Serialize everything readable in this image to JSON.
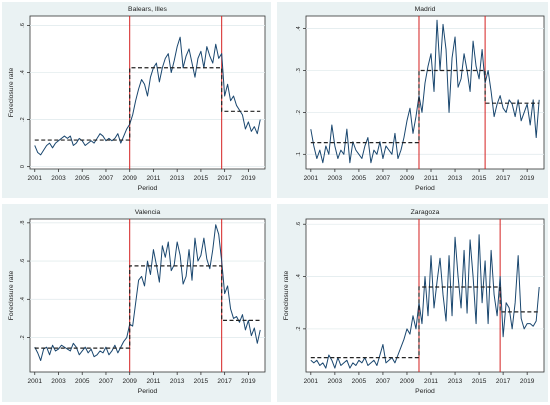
{
  "chart_data": [
    {
      "type": "line",
      "title": "Balears, Illes",
      "xlabel": "Period",
      "ylabel": "Foreclosure rate",
      "xlim": [
        2000.6,
        2020.4
      ],
      "ylim": [
        -0.01,
        0.64
      ],
      "xticks": [
        2001,
        2003,
        2005,
        2007,
        2009,
        2011,
        2013,
        2015,
        2017,
        2019
      ],
      "yticks": [
        0,
        0.2,
        0.4,
        0.6
      ],
      "ytick_labels": [
        "0",
        ".2",
        ".4",
        ".6"
      ],
      "grid": true,
      "breaks": [
        2009.0,
        2016.75
      ],
      "regime_means": [
        {
          "x_start": 2001.0,
          "x_end": 2009.0,
          "y": 0.113
        },
        {
          "x_start": 2009.0,
          "x_end": 2016.75,
          "y": 0.42
        },
        {
          "x_start": 2016.75,
          "x_end": 2020.0,
          "y": 0.235
        }
      ],
      "series": [
        {
          "x": [
            2001.0,
            2001.25,
            2001.5,
            2001.75,
            2002.0,
            2002.25,
            2002.5,
            2002.75,
            2003.0,
            2003.25,
            2003.5,
            2003.75,
            2004.0,
            2004.25,
            2004.5,
            2004.75,
            2005.0,
            2005.25,
            2005.5,
            2005.75,
            2006.0,
            2006.25,
            2006.5,
            2006.75,
            2007.0,
            2007.25,
            2007.5,
            2007.75,
            2008.0,
            2008.25,
            2008.5,
            2008.75,
            2009.0,
            2009.25,
            2009.5,
            2009.75,
            2010.0,
            2010.25,
            2010.5,
            2010.75,
            2011.0,
            2011.25,
            2011.5,
            2011.75,
            2012.0,
            2012.25,
            2012.5,
            2012.75,
            2013.0,
            2013.25,
            2013.5,
            2013.75,
            2014.0,
            2014.25,
            2014.5,
            2014.75,
            2015.0,
            2015.25,
            2015.5,
            2015.75,
            2016.0,
            2016.25,
            2016.5,
            2016.75,
            2017.0,
            2017.25,
            2017.5,
            2017.75,
            2018.0,
            2018.25,
            2018.5,
            2018.75,
            2019.0,
            2019.25,
            2019.5,
            2019.75,
            2020.0
          ],
          "values": [
            0.09,
            0.06,
            0.05,
            0.07,
            0.09,
            0.1,
            0.08,
            0.1,
            0.11,
            0.12,
            0.13,
            0.12,
            0.13,
            0.09,
            0.1,
            0.12,
            0.11,
            0.09,
            0.1,
            0.11,
            0.1,
            0.12,
            0.14,
            0.13,
            0.11,
            0.12,
            0.11,
            0.12,
            0.14,
            0.1,
            0.13,
            0.16,
            0.18,
            0.22,
            0.28,
            0.33,
            0.37,
            0.35,
            0.3,
            0.38,
            0.42,
            0.44,
            0.36,
            0.42,
            0.46,
            0.48,
            0.4,
            0.45,
            0.51,
            0.55,
            0.42,
            0.47,
            0.5,
            0.44,
            0.38,
            0.46,
            0.49,
            0.42,
            0.51,
            0.47,
            0.44,
            0.52,
            0.46,
            0.48,
            0.3,
            0.35,
            0.28,
            0.3,
            0.26,
            0.24,
            0.22,
            0.16,
            0.19,
            0.15,
            0.17,
            0.14,
            0.2
          ]
        }
      ]
    },
    {
      "type": "line",
      "title": "Madrid",
      "xlabel": "Period",
      "ylabel": "",
      "xlim": [
        2000.6,
        2020.4
      ],
      "ylim": [
        0.065,
        0.43
      ],
      "xticks": [
        2001,
        2003,
        2005,
        2007,
        2009,
        2011,
        2013,
        2015,
        2017,
        2019
      ],
      "yticks": [
        0.1,
        0.2,
        0.3,
        0.4
      ],
      "ytick_labels": [
        ".1",
        ".2",
        ".3",
        ".4"
      ],
      "grid": true,
      "breaks": [
        2010.0,
        2015.5
      ],
      "regime_means": [
        {
          "x_start": 2001.0,
          "x_end": 2010.0,
          "y": 0.128
        },
        {
          "x_start": 2010.0,
          "x_end": 2015.5,
          "y": 0.3
        },
        {
          "x_start": 2015.5,
          "x_end": 2020.0,
          "y": 0.222
        }
      ],
      "series": [
        {
          "x": [
            2001.0,
            2001.25,
            2001.5,
            2001.75,
            2002.0,
            2002.25,
            2002.5,
            2002.75,
            2003.0,
            2003.25,
            2003.5,
            2003.75,
            2004.0,
            2004.25,
            2004.5,
            2004.75,
            2005.0,
            2005.25,
            2005.5,
            2005.75,
            2006.0,
            2006.25,
            2006.5,
            2006.75,
            2007.0,
            2007.25,
            2007.5,
            2007.75,
            2008.0,
            2008.25,
            2008.5,
            2008.75,
            2009.0,
            2009.25,
            2009.5,
            2009.75,
            2010.0,
            2010.25,
            2010.5,
            2010.75,
            2011.0,
            2011.25,
            2011.5,
            2011.75,
            2012.0,
            2012.25,
            2012.5,
            2012.75,
            2013.0,
            2013.25,
            2013.5,
            2013.75,
            2014.0,
            2014.25,
            2014.5,
            2014.75,
            2015.0,
            2015.25,
            2015.5,
            2015.75,
            2016.0,
            2016.25,
            2016.5,
            2016.75,
            2017.0,
            2017.25,
            2017.5,
            2017.75,
            2018.0,
            2018.25,
            2018.5,
            2018.75,
            2019.0,
            2019.25,
            2019.5,
            2019.75,
            2020.0
          ],
          "values": [
            0.16,
            0.12,
            0.09,
            0.11,
            0.08,
            0.12,
            0.1,
            0.17,
            0.12,
            0.09,
            0.11,
            0.1,
            0.16,
            0.08,
            0.13,
            0.11,
            0.1,
            0.09,
            0.12,
            0.14,
            0.08,
            0.11,
            0.1,
            0.13,
            0.09,
            0.12,
            0.11,
            0.1,
            0.15,
            0.09,
            0.11,
            0.14,
            0.18,
            0.21,
            0.15,
            0.19,
            0.24,
            0.2,
            0.27,
            0.31,
            0.34,
            0.25,
            0.42,
            0.3,
            0.41,
            0.35,
            0.2,
            0.33,
            0.38,
            0.26,
            0.28,
            0.34,
            0.3,
            0.25,
            0.37,
            0.31,
            0.28,
            0.35,
            0.27,
            0.3,
            0.25,
            0.19,
            0.22,
            0.24,
            0.21,
            0.2,
            0.23,
            0.22,
            0.19,
            0.23,
            0.18,
            0.2,
            0.22,
            0.17,
            0.23,
            0.14,
            0.23
          ]
        }
      ]
    },
    {
      "type": "line",
      "title": "Valencia",
      "xlabel": "Period",
      "ylabel": "Foreclosure rate",
      "xlim": [
        2000.6,
        2020.4
      ],
      "ylim": [
        0.02,
        0.82
      ],
      "xticks": [
        2001,
        2003,
        2005,
        2007,
        2009,
        2011,
        2013,
        2015,
        2017,
        2019
      ],
      "yticks": [
        0.2,
        0.4,
        0.6,
        0.8
      ],
      "ytick_labels": [
        ".2",
        ".4",
        ".6",
        ".8"
      ],
      "grid": true,
      "breaks": [
        2009.0,
        2016.75
      ],
      "regime_means": [
        {
          "x_start": 2001.0,
          "x_end": 2009.0,
          "y": 0.145
        },
        {
          "x_start": 2009.0,
          "x_end": 2016.75,
          "y": 0.575
        },
        {
          "x_start": 2016.75,
          "x_end": 2020.0,
          "y": 0.29
        }
      ],
      "series": [
        {
          "x": [
            2001.0,
            2001.25,
            2001.5,
            2001.75,
            2002.0,
            2002.25,
            2002.5,
            2002.75,
            2003.0,
            2003.25,
            2003.5,
            2003.75,
            2004.0,
            2004.25,
            2004.5,
            2004.75,
            2005.0,
            2005.25,
            2005.5,
            2005.75,
            2006.0,
            2006.25,
            2006.5,
            2006.75,
            2007.0,
            2007.25,
            2007.5,
            2007.75,
            2008.0,
            2008.25,
            2008.5,
            2008.75,
            2009.0,
            2009.25,
            2009.5,
            2009.75,
            2010.0,
            2010.25,
            2010.5,
            2010.75,
            2011.0,
            2011.25,
            2011.5,
            2011.75,
            2012.0,
            2012.25,
            2012.5,
            2012.75,
            2013.0,
            2013.25,
            2013.5,
            2013.75,
            2014.0,
            2014.25,
            2014.5,
            2014.75,
            2015.0,
            2015.25,
            2015.5,
            2015.75,
            2016.0,
            2016.25,
            2016.5,
            2016.75,
            2017.0,
            2017.25,
            2017.5,
            2017.75,
            2018.0,
            2018.25,
            2018.5,
            2018.75,
            2019.0,
            2019.25,
            2019.5,
            2019.75,
            2020.0
          ],
          "values": [
            0.15,
            0.12,
            0.08,
            0.14,
            0.15,
            0.11,
            0.16,
            0.13,
            0.14,
            0.16,
            0.15,
            0.14,
            0.13,
            0.17,
            0.15,
            0.11,
            0.13,
            0.15,
            0.12,
            0.14,
            0.1,
            0.11,
            0.13,
            0.12,
            0.15,
            0.11,
            0.13,
            0.16,
            0.12,
            0.15,
            0.18,
            0.2,
            0.27,
            0.26,
            0.38,
            0.5,
            0.52,
            0.47,
            0.6,
            0.53,
            0.66,
            0.58,
            0.49,
            0.68,
            0.62,
            0.7,
            0.55,
            0.58,
            0.7,
            0.63,
            0.48,
            0.52,
            0.66,
            0.5,
            0.72,
            0.6,
            0.63,
            0.72,
            0.61,
            0.56,
            0.66,
            0.79,
            0.74,
            0.6,
            0.43,
            0.47,
            0.35,
            0.3,
            0.31,
            0.28,
            0.32,
            0.24,
            0.29,
            0.21,
            0.25,
            0.17,
            0.24
          ]
        }
      ]
    },
    {
      "type": "line",
      "title": "Zaragoza",
      "xlabel": "Period",
      "ylabel": "Foreclosure rate",
      "xlim": [
        2000.6,
        2020.4
      ],
      "ylim": [
        0.035,
        0.62
      ],
      "xticks": [
        2001,
        2003,
        2005,
        2007,
        2009,
        2011,
        2013,
        2015,
        2017,
        2019
      ],
      "yticks": [
        0.2,
        0.4,
        0.6
      ],
      "ytick_labels": [
        ".2",
        ".4",
        ".6"
      ],
      "grid": true,
      "breaks": [
        2010.0,
        2016.75
      ],
      "regime_means": [
        {
          "x_start": 2001.0,
          "x_end": 2010.0,
          "y": 0.09
        },
        {
          "x_start": 2010.0,
          "x_end": 2016.75,
          "y": 0.36
        },
        {
          "x_start": 2016.75,
          "x_end": 2020.0,
          "y": 0.265
        }
      ],
      "series": [
        {
          "x": [
            2001.0,
            2001.25,
            2001.5,
            2001.75,
            2002.0,
            2002.25,
            2002.5,
            2002.75,
            2003.0,
            2003.25,
            2003.5,
            2003.75,
            2004.0,
            2004.25,
            2004.5,
            2004.75,
            2005.0,
            2005.25,
            2005.5,
            2005.75,
            2006.0,
            2006.25,
            2006.5,
            2006.75,
            2007.0,
            2007.25,
            2007.5,
            2007.75,
            2008.0,
            2008.25,
            2008.5,
            2008.75,
            2009.0,
            2009.25,
            2009.5,
            2009.75,
            2010.0,
            2010.25,
            2010.5,
            2010.75,
            2011.0,
            2011.25,
            2011.5,
            2011.75,
            2012.0,
            2012.25,
            2012.5,
            2012.75,
            2013.0,
            2013.25,
            2013.5,
            2013.75,
            2014.0,
            2014.25,
            2014.5,
            2014.75,
            2015.0,
            2015.25,
            2015.5,
            2015.75,
            2016.0,
            2016.25,
            2016.5,
            2016.75,
            2017.0,
            2017.25,
            2017.5,
            2017.75,
            2018.0,
            2018.25,
            2018.5,
            2018.75,
            2019.0,
            2019.25,
            2019.5,
            2019.75,
            2020.0
          ],
          "values": [
            0.08,
            0.07,
            0.08,
            0.06,
            0.07,
            0.05,
            0.1,
            0.08,
            0.05,
            0.09,
            0.06,
            0.07,
            0.08,
            0.05,
            0.07,
            0.06,
            0.08,
            0.07,
            0.09,
            0.06,
            0.07,
            0.08,
            0.06,
            0.1,
            0.14,
            0.07,
            0.08,
            0.09,
            0.07,
            0.1,
            0.13,
            0.16,
            0.2,
            0.18,
            0.25,
            0.2,
            0.3,
            0.22,
            0.4,
            0.25,
            0.48,
            0.28,
            0.38,
            0.47,
            0.33,
            0.23,
            0.48,
            0.25,
            0.55,
            0.4,
            0.28,
            0.5,
            0.26,
            0.54,
            0.4,
            0.22,
            0.56,
            0.3,
            0.46,
            0.22,
            0.5,
            0.33,
            0.25,
            0.4,
            0.17,
            0.3,
            0.28,
            0.2,
            0.3,
            0.48,
            0.24,
            0.2,
            0.22,
            0.22,
            0.21,
            0.23,
            0.36
          ]
        }
      ]
    }
  ]
}
